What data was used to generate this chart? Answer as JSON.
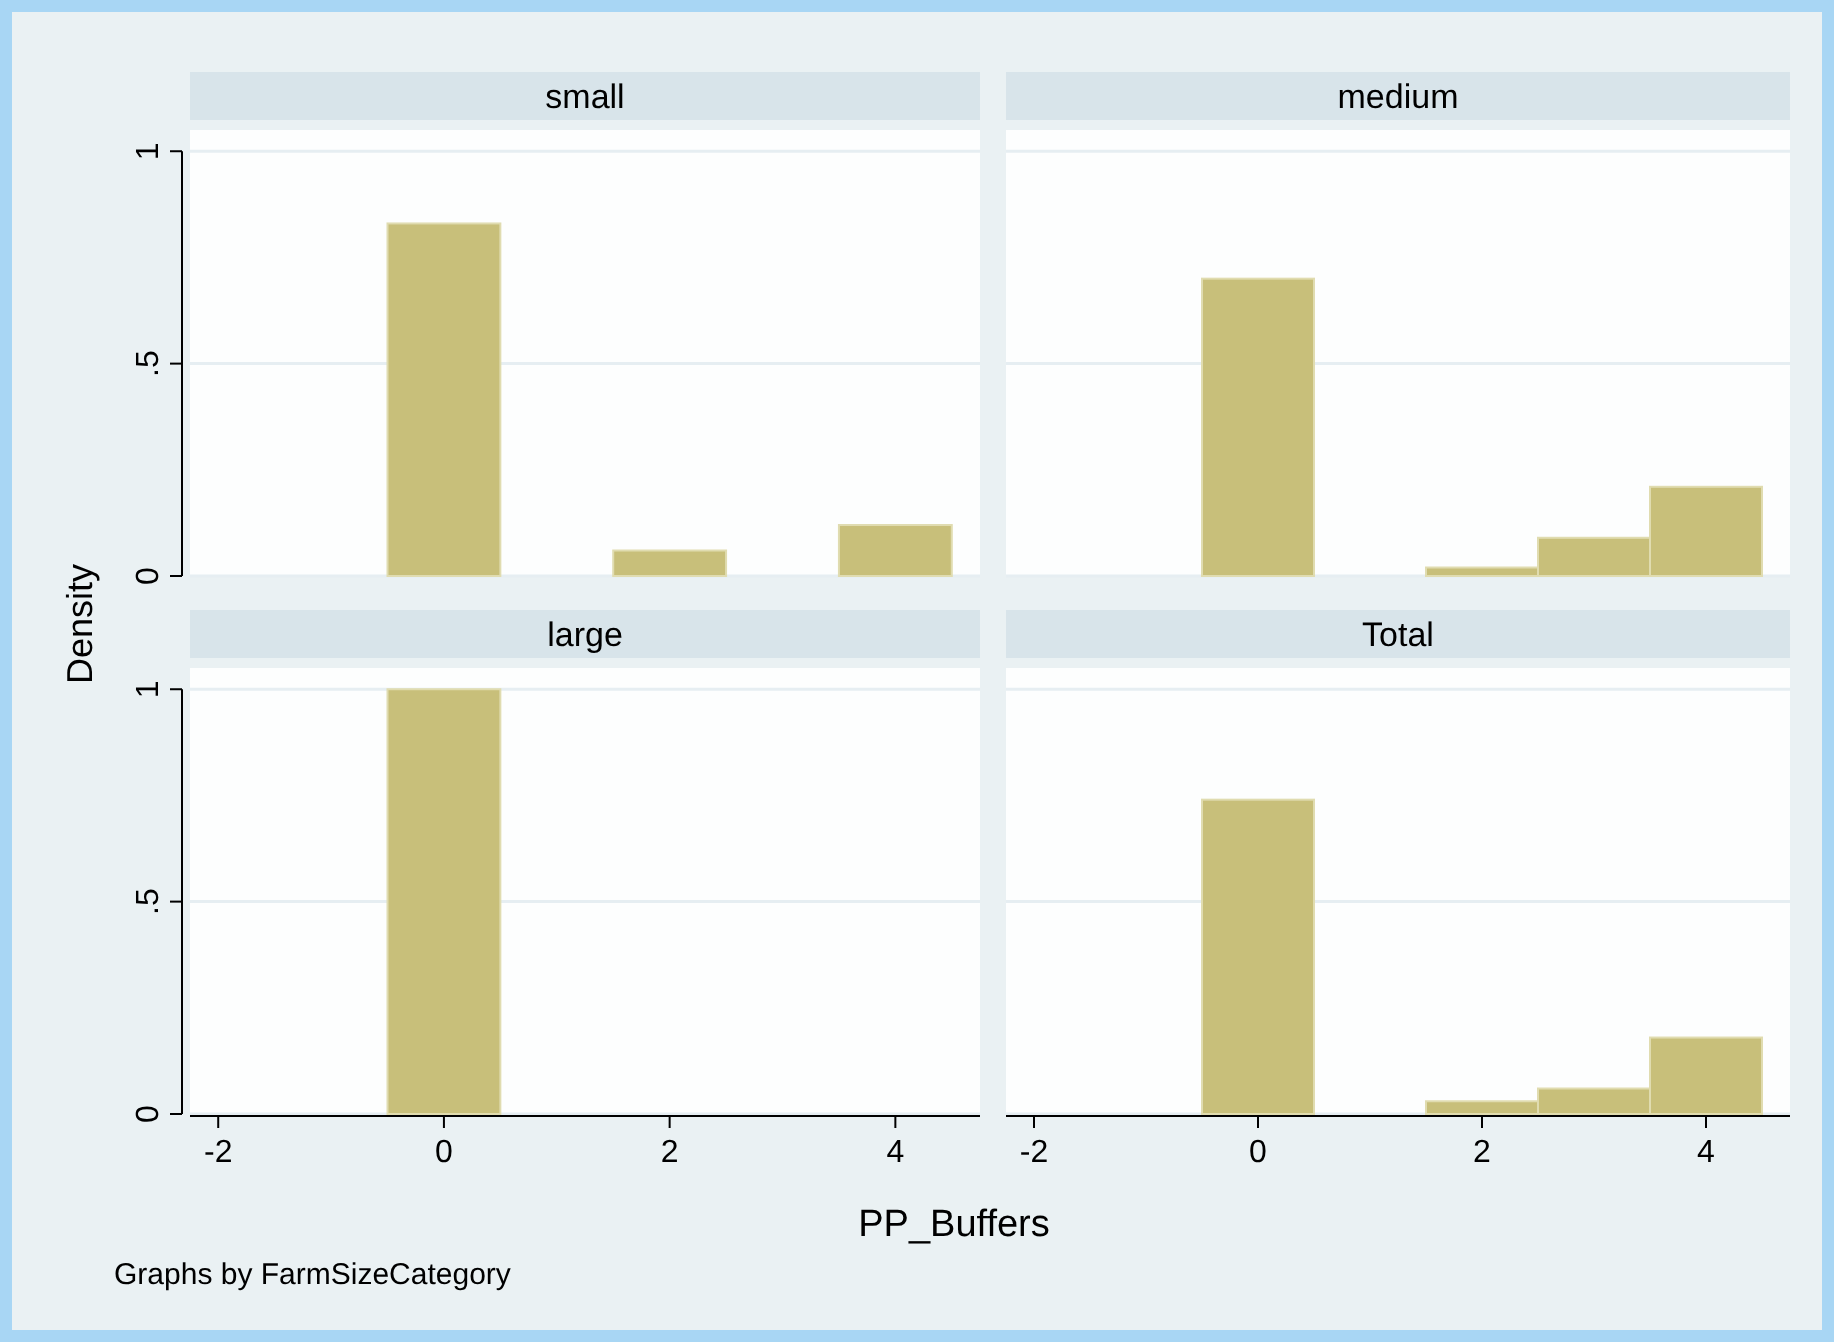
{
  "chart_data": [
    {
      "type": "histogram",
      "title": "small",
      "ylabel": "Density",
      "xlabel": "PP_Buffers",
      "annotations": [
        "Graphs by FarmSizeCategory"
      ],
      "bins": [
        -0.5,
        0.5,
        1.5,
        2.5,
        3.5,
        4.5
      ],
      "values": [
        0.83,
        0,
        0.06,
        0,
        0.12
      ],
      "color": "#c8bf7a",
      "xlim": [
        -2.25,
        4.75
      ],
      "ylim": [
        0,
        1.05
      ],
      "yticks": [
        0,
        {
          "value": 0.5,
          "label": ".5"
        },
        1
      ],
      "grid": "y",
      "tick_labels": "y"
    },
    {
      "type": "histogram",
      "title": "medium",
      "bins": [
        -0.5,
        0.5,
        1.5,
        2.5,
        3.5,
        4.5
      ],
      "values": [
        0.7,
        0,
        0.02,
        0.09,
        0.21
      ],
      "color": "#c8bf7a",
      "xlim": [
        -2.25,
        4.75
      ],
      "ylim": [
        0,
        1.05
      ],
      "yticks": [
        0,
        0.5,
        1
      ],
      "grid": "y",
      "tick_labels": false
    },
    {
      "type": "histogram",
      "title": "large",
      "bins": [
        -0.5,
        0.5
      ],
      "values": [
        1
      ],
      "color": "#c8bf7a",
      "xlim": [
        -2.25,
        4.75
      ],
      "ylim": [
        0,
        1.05
      ],
      "xticks": [
        -2,
        0,
        2,
        4
      ],
      "yticks": [
        0,
        {
          "value": 0.5,
          "label": ".5"
        },
        1
      ],
      "grid": "y"
    },
    {
      "type": "histogram",
      "title": "Total",
      "bins": [
        -0.5,
        0.5,
        1.5,
        2.5,
        3.5,
        4.5
      ],
      "values": [
        0.74,
        0,
        0.03,
        0.06,
        0.18
      ],
      "color": "#c8bf7a",
      "xlim": [
        -2.25,
        4.75
      ],
      "ylim": [
        0,
        1.05
      ],
      "xticks": [
        -2,
        0,
        2,
        4
      ],
      "yticks": [
        0,
        0.5,
        1
      ],
      "grid": "y",
      "tick_labels": "x"
    }
  ]
}
